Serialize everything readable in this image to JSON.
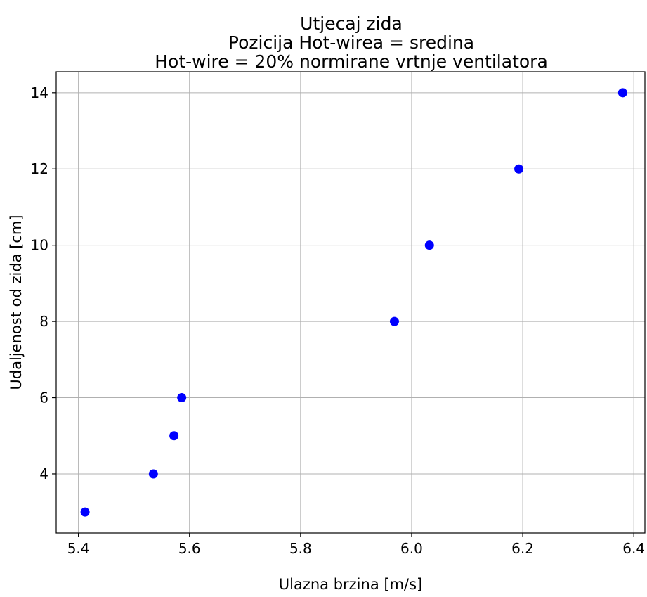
{
  "chart_data": {
    "type": "scatter",
    "title_lines": [
      "Utjecaj zida",
      "Pozicija Hot-wirea = sredina",
      "Hot-wire = 20% normirane vrtnje ventilatora"
    ],
    "xlabel": "Ulazna brzina [m/s]",
    "ylabel": "Udaljenost od zida [cm]",
    "xlim": [
      5.36,
      6.42
    ],
    "ylim": [
      2.45,
      14.55
    ],
    "xticks": [
      5.4,
      5.6,
      5.8,
      6.0,
      6.2,
      6.4
    ],
    "xtick_labels": [
      "5.4",
      "5.6",
      "5.8",
      "6.0",
      "6.2",
      "6.4"
    ],
    "yticks": [
      4,
      6,
      8,
      10,
      12,
      14
    ],
    "ytick_labels": [
      "4",
      "6",
      "8",
      "10",
      "12",
      "14"
    ],
    "grid": true,
    "series": [
      {
        "color": "#0000ff",
        "x": [
          5.412,
          5.535,
          5.572,
          5.586,
          5.969,
          6.032,
          6.193,
          6.38
        ],
        "y": [
          3,
          4,
          5,
          6,
          8,
          10,
          12,
          14
        ]
      }
    ]
  }
}
